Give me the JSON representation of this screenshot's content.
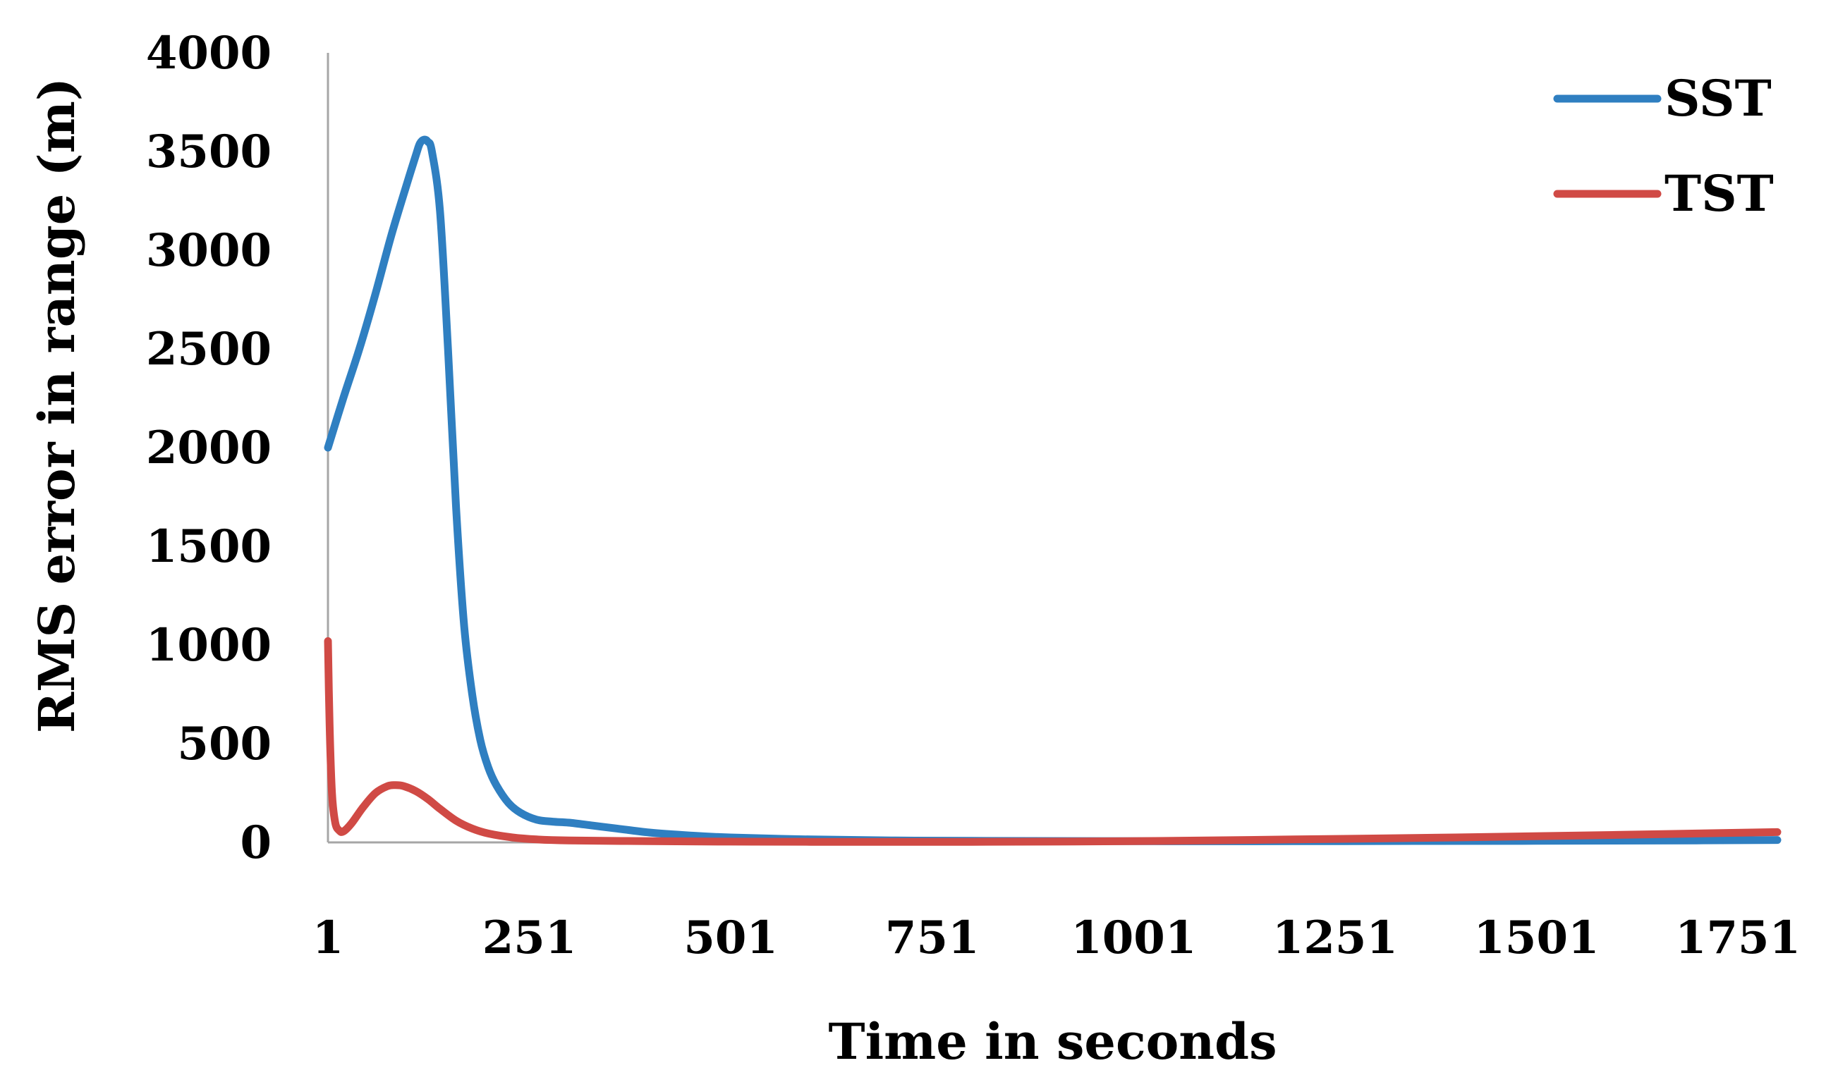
{
  "chart_data": {
    "type": "line",
    "xlabel": "Time in seconds",
    "ylabel": "RMS error in range (m)",
    "xlim": [
      1,
      1800
    ],
    "ylim": [
      0,
      4000
    ],
    "x_ticks": [
      1,
      251,
      501,
      751,
      1001,
      1251,
      1501,
      1751
    ],
    "y_ticks": [
      0,
      500,
      1000,
      1500,
      2000,
      2500,
      3000,
      3500,
      4000
    ],
    "grid": false,
    "legend_position": "top-right",
    "series": [
      {
        "name": "SST",
        "color": "#2f7fc1",
        "points": [
          [
            1,
            2000
          ],
          [
            20,
            2250
          ],
          [
            40,
            2500
          ],
          [
            60,
            2780
          ],
          [
            80,
            3080
          ],
          [
            100,
            3350
          ],
          [
            110,
            3480
          ],
          [
            115,
            3540
          ],
          [
            120,
            3560
          ],
          [
            125,
            3550
          ],
          [
            130,
            3500
          ],
          [
            140,
            3200
          ],
          [
            150,
            2500
          ],
          [
            160,
            1700
          ],
          [
            170,
            1100
          ],
          [
            180,
            750
          ],
          [
            190,
            520
          ],
          [
            200,
            380
          ],
          [
            210,
            290
          ],
          [
            225,
            200
          ],
          [
            240,
            150
          ],
          [
            260,
            115
          ],
          [
            280,
            105
          ],
          [
            300,
            100
          ],
          [
            330,
            85
          ],
          [
            360,
            70
          ],
          [
            400,
            50
          ],
          [
            450,
            35
          ],
          [
            500,
            25
          ],
          [
            600,
            15
          ],
          [
            700,
            10
          ],
          [
            800,
            8
          ],
          [
            1000,
            6
          ],
          [
            1200,
            6
          ],
          [
            1500,
            8
          ],
          [
            1700,
            10
          ],
          [
            1800,
            12
          ]
        ]
      },
      {
        "name": "TST",
        "color": "#d04a45",
        "points": [
          [
            1,
            1020
          ],
          [
            3,
            600
          ],
          [
            6,
            250
          ],
          [
            10,
            100
          ],
          [
            15,
            60
          ],
          [
            20,
            55
          ],
          [
            30,
            95
          ],
          [
            45,
            180
          ],
          [
            60,
            250
          ],
          [
            75,
            285
          ],
          [
            85,
            290
          ],
          [
            95,
            285
          ],
          [
            110,
            260
          ],
          [
            125,
            220
          ],
          [
            140,
            170
          ],
          [
            160,
            110
          ],
          [
            180,
            70
          ],
          [
            200,
            45
          ],
          [
            230,
            25
          ],
          [
            260,
            15
          ],
          [
            300,
            10
          ],
          [
            400,
            6
          ],
          [
            500,
            4
          ],
          [
            600,
            3
          ],
          [
            800,
            3
          ],
          [
            1000,
            6
          ],
          [
            1200,
            15
          ],
          [
            1400,
            25
          ],
          [
            1600,
            38
          ],
          [
            1700,
            45
          ],
          [
            1800,
            52
          ]
        ]
      }
    ]
  }
}
